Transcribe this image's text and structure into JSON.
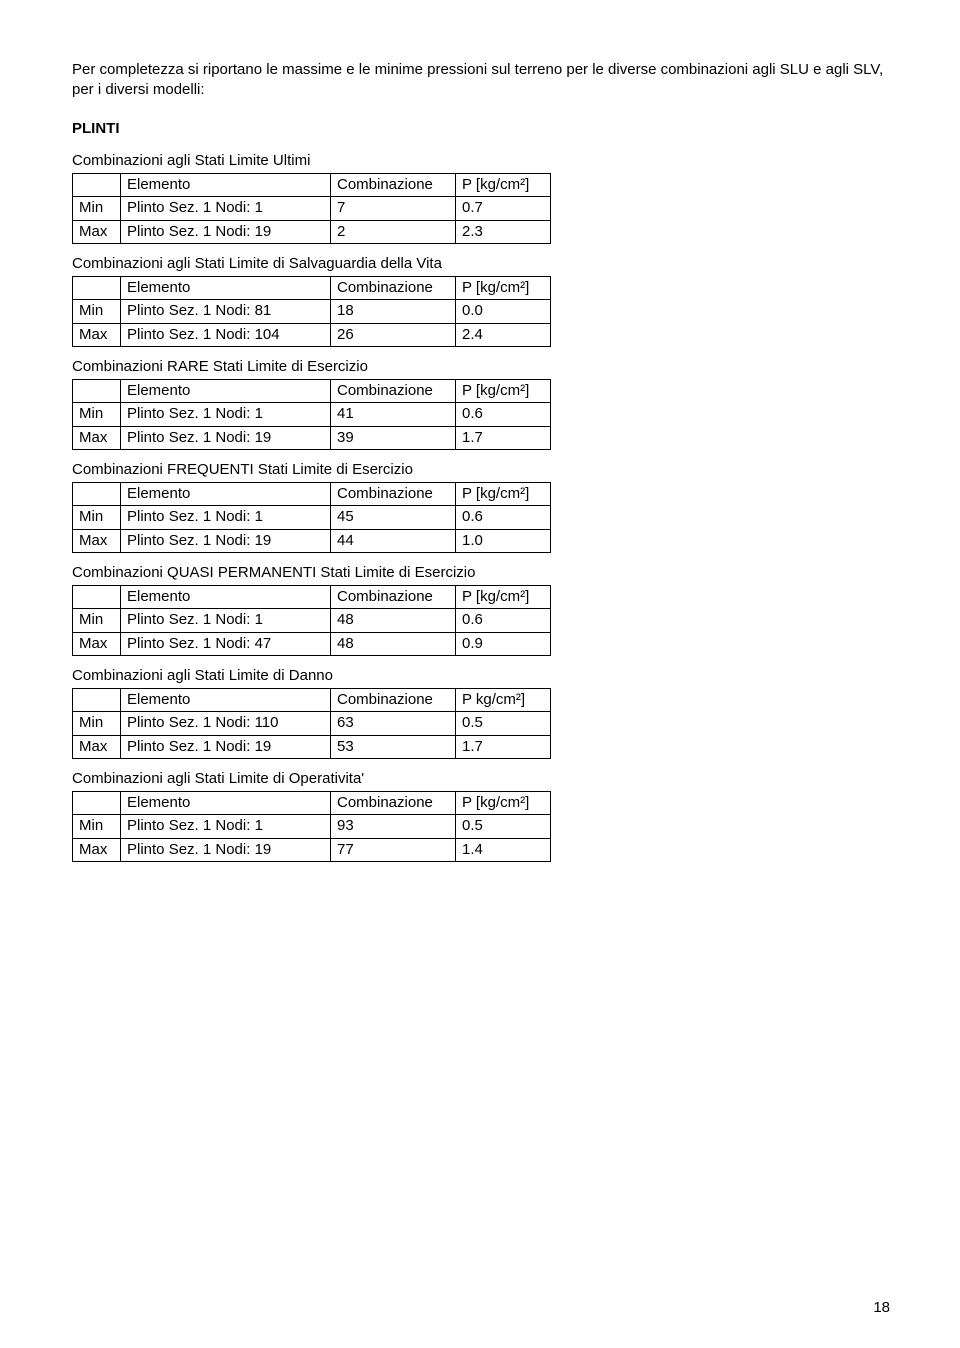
{
  "intro": "Per completezza si riportano le massime e le minime pressioni sul terreno per le diverse combinazioni agli SLU e agli SLV, per i diversi modelli:",
  "section": "PLINTI",
  "page_number": "18",
  "header": {
    "blank": "",
    "elemento": "Elemento",
    "combinazione": "Combinazione",
    "p": "P [kg/cm²]",
    "p_alt": "P kg/cm²]"
  },
  "labels": {
    "min": "Min",
    "max": "Max"
  },
  "tables": [
    {
      "title": "Combinazioni agli Stati Limite Ultimi",
      "p_header_key": "p",
      "rows": [
        {
          "k": "min",
          "el": "Plinto Sez. 1 Nodi: 1",
          "c": "7",
          "p": "0.7"
        },
        {
          "k": "max",
          "el": "Plinto Sez. 1 Nodi: 19",
          "c": "2",
          "p": "2.3"
        }
      ]
    },
    {
      "title": "Combinazioni agli Stati Limite di Salvaguardia della Vita",
      "p_header_key": "p",
      "rows": [
        {
          "k": "min",
          "el": "Plinto Sez. 1 Nodi: 81",
          "c": "18",
          "p": "0.0"
        },
        {
          "k": "max",
          "el": "Plinto Sez. 1 Nodi: 104",
          "c": "26",
          "p": "2.4"
        }
      ]
    },
    {
      "title": "Combinazioni RARE Stati Limite di Esercizio",
      "p_header_key": "p",
      "rows": [
        {
          "k": "min",
          "el": "Plinto Sez. 1 Nodi: 1",
          "c": "41",
          "p": "0.6"
        },
        {
          "k": "max",
          "el": "Plinto Sez. 1 Nodi: 19",
          "c": "39",
          "p": "1.7"
        }
      ]
    },
    {
      "title": "Combinazioni FREQUENTI Stati Limite di Esercizio",
      "p_header_key": "p",
      "rows": [
        {
          "k": "min",
          "el": "Plinto Sez. 1 Nodi: 1",
          "c": "45",
          "p": "0.6"
        },
        {
          "k": "max",
          "el": "Plinto Sez. 1 Nodi: 19",
          "c": "44",
          "p": "1.0"
        }
      ]
    },
    {
      "title": "Combinazioni QUASI PERMANENTI Stati Limite di Esercizio",
      "p_header_key": "p",
      "rows": [
        {
          "k": "min",
          "el": "Plinto Sez. 1 Nodi: 1",
          "c": "48",
          "p": "0.6"
        },
        {
          "k": "max",
          "el": "Plinto Sez. 1 Nodi: 47",
          "c": "48",
          "p": "0.9"
        }
      ]
    },
    {
      "title": "Combinazioni agli Stati Limite di Danno",
      "p_header_key": "p_alt",
      "rows": [
        {
          "k": "min",
          "el": "Plinto Sez. 1 Nodi: 110",
          "c": "63",
          "p": "0.5"
        },
        {
          "k": "max",
          "el": "Plinto Sez. 1 Nodi: 19",
          "c": "53",
          "p": "1.7"
        }
      ]
    },
    {
      "title": "Combinazioni agli Stati Limite di Operativita'",
      "p_header_key": "p",
      "rows": [
        {
          "k": "min",
          "el": "Plinto Sez. 1 Nodi: 1",
          "c": "93",
          "p": "0.5"
        },
        {
          "k": "max",
          "el": "Plinto Sez. 1 Nodi: 19",
          "c": "77",
          "p": "1.4"
        }
      ]
    }
  ]
}
